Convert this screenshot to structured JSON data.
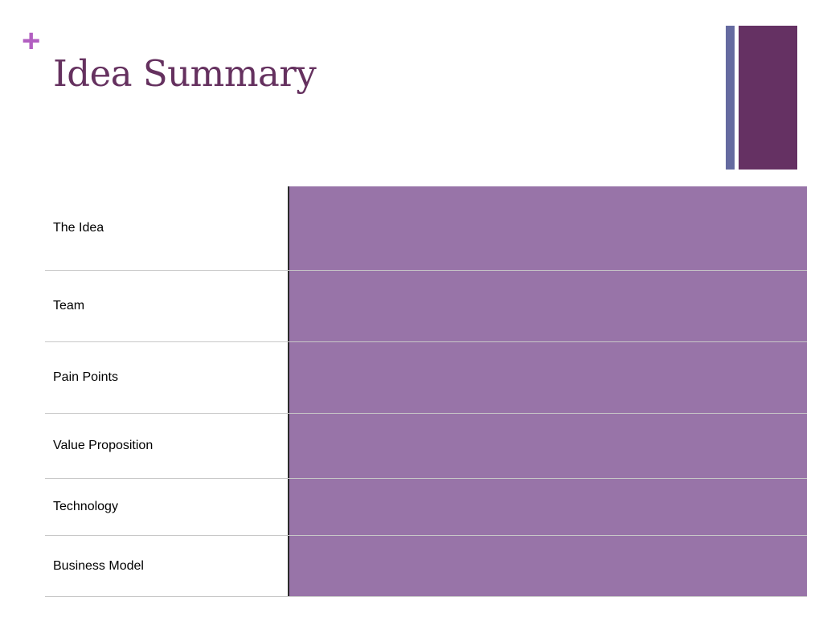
{
  "slide": {
    "plus_symbol": "+",
    "title": "Idea Summary"
  },
  "colors": {
    "title": "#65315f",
    "plus": "#b25fc1",
    "accent_thin_bar": "#656aa0",
    "accent_thick_bar": "#653163",
    "table_fill": "#9874a8",
    "row_divider": "#c8c8c8",
    "column_divider": "#2b2b2b"
  },
  "table": {
    "rows": [
      {
        "label": "The Idea",
        "value": ""
      },
      {
        "label": "Team",
        "value": ""
      },
      {
        "label": "Pain Points",
        "value": ""
      },
      {
        "label": "Value Proposition",
        "value": ""
      },
      {
        "label": "Technology",
        "value": ""
      },
      {
        "label": "Business Model",
        "value": ""
      }
    ]
  }
}
